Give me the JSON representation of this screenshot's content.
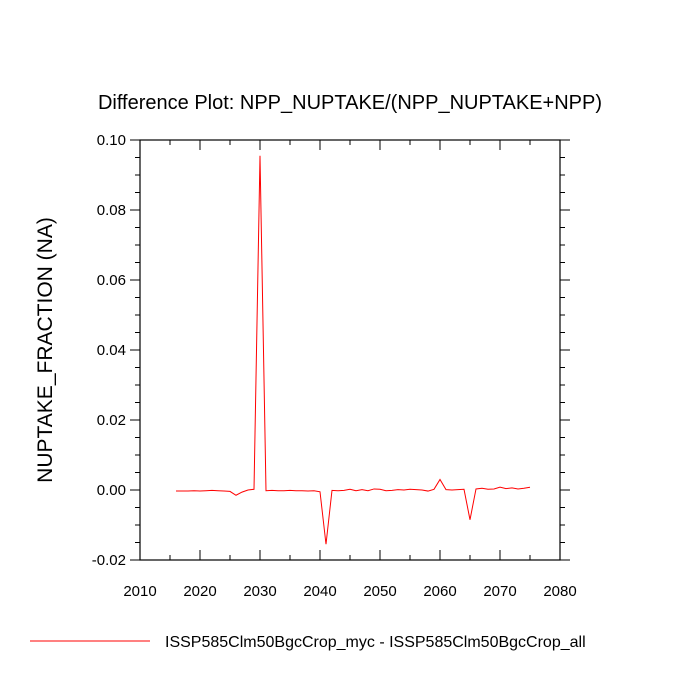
{
  "chart_data": {
    "type": "line",
    "title": "Difference Plot: NPP_NUPTAKE/(NPP_NUPTAKE+NPP)",
    "xlabel": "",
    "ylabel": "NUPTAKE_FRACTION  (NA)",
    "xlim": [
      2010,
      2080
    ],
    "ylim": [
      -0.02,
      0.1
    ],
    "x_ticks": [
      2010,
      2020,
      2030,
      2040,
      2050,
      2060,
      2070,
      2080
    ],
    "x_tick_labels": [
      "2010",
      "2020",
      "2030",
      "2040",
      "2050",
      "2060",
      "2070",
      "2080"
    ],
    "y_ticks": [
      -0.02,
      0.0,
      0.02,
      0.04,
      0.06,
      0.08,
      0.1
    ],
    "y_tick_labels": [
      "-0.02",
      "0.00",
      "0.02",
      "0.04",
      "0.06",
      "0.08",
      "0.10"
    ],
    "grid": false,
    "legend_position": "bottom",
    "series": [
      {
        "name": "ISSP585Clm50BgcCrop_myc - ISSP585Clm50BgcCrop_all",
        "color": "#ff0000",
        "x": [
          2016,
          2017,
          2018,
          2019,
          2020,
          2021,
          2022,
          2023,
          2024,
          2025,
          2026,
          2027,
          2028,
          2029,
          2030,
          2031,
          2032,
          2033,
          2034,
          2035,
          2036,
          2037,
          2038,
          2039,
          2040,
          2041,
          2042,
          2043,
          2044,
          2045,
          2046,
          2047,
          2048,
          2049,
          2050,
          2051,
          2052,
          2053,
          2054,
          2055,
          2056,
          2057,
          2058,
          2059,
          2060,
          2061,
          2062,
          2063,
          2064,
          2065,
          2066,
          2067,
          2068,
          2069,
          2070,
          2071,
          2072,
          2073,
          2074,
          2075
        ],
        "y": [
          -0.0003,
          -0.0003,
          -0.0003,
          -0.0002,
          -0.0003,
          -0.0002,
          -0.0001,
          -0.0002,
          -0.0003,
          -0.0004,
          -0.0015,
          -0.0006,
          0.0,
          0.0002,
          0.0955,
          -0.0002,
          -0.0001,
          -0.0002,
          -0.0002,
          -0.0001,
          -0.0002,
          -0.0002,
          -0.0003,
          -0.0002,
          -0.0005,
          -0.0155,
          -0.0001,
          -0.0002,
          -0.0001,
          0.0002,
          -0.0002,
          0.0001,
          -0.0002,
          0.0003,
          0.0002,
          -0.0002,
          -0.0001,
          0.0001,
          0.0,
          0.0002,
          0.0001,
          0.0,
          -0.0003,
          0.0002,
          0.003,
          0.0001,
          0.0,
          0.0001,
          0.0002,
          -0.0085,
          0.0003,
          0.0005,
          0.0002,
          0.0003,
          0.0008,
          0.0004,
          0.0006,
          0.0003,
          0.0005,
          0.0008
        ]
      }
    ]
  }
}
